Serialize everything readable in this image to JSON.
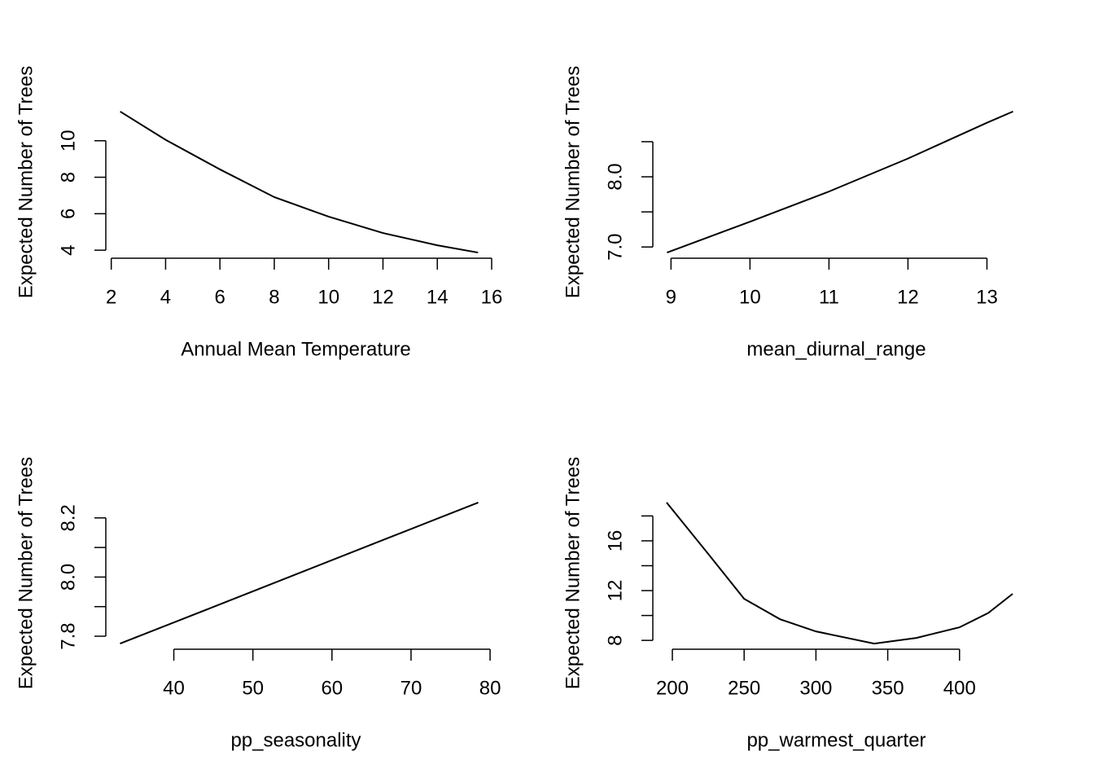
{
  "chart_data": [
    {
      "type": "line",
      "x_label": "Annual Mean Temperature",
      "y_label": "Expected Number of Trees",
      "color": "#000000",
      "x": [
        2.33,
        4,
        6,
        8,
        10,
        12,
        14,
        15.5
      ],
      "values": [
        11.6,
        10.05,
        8.43,
        6.91,
        5.84,
        4.94,
        4.27,
        3.87
      ],
      "xlim": [
        1.8,
        16.03
      ],
      "ylim": [
        3.56,
        11.91
      ],
      "xticks": [
        2,
        4,
        6,
        8,
        10,
        12,
        14,
        16
      ],
      "yticks": [
        4,
        6,
        8,
        10
      ]
    },
    {
      "type": "line",
      "x_label": "mean_diurnal_range",
      "y_label": "Expected Number of Trees",
      "color": "#000000",
      "x": [
        8.95,
        10,
        11,
        12,
        13,
        13.33
      ],
      "values": [
        6.92,
        7.36,
        7.79,
        8.26,
        8.77,
        8.93
      ],
      "xlim": [
        8.77,
        13.5
      ],
      "ylim": [
        6.84,
        9.01
      ],
      "xticks": [
        9,
        10,
        11,
        12,
        13
      ],
      "yticks": [
        {
          "value": 7,
          "label": "7.0"
        },
        {
          "value": 7.5,
          "label": null
        },
        {
          "value": 8,
          "label": "8.0"
        },
        {
          "value": 8.5,
          "label": null
        }
      ]
    },
    {
      "type": "line",
      "x_label": "pp_seasonality",
      "y_label": "Expected Number of Trees",
      "color": "#000000",
      "x": [
        33.2,
        45,
        56,
        67,
        78.5
      ],
      "values": [
        7.775,
        7.899,
        8.015,
        8.131,
        8.252
      ],
      "xlim": [
        31.4,
        80.3
      ],
      "ylim": [
        7.756,
        8.271
      ],
      "xticks": [
        40,
        50,
        60,
        70,
        80
      ],
      "yticks": [
        7.8,
        {
          "value": 7.9,
          "label": null
        },
        {
          "value": 8,
          "label": "8.0"
        },
        {
          "value": 8.1,
          "label": null
        },
        8.2
      ]
    },
    {
      "type": "line",
      "x_label": "pp_warmest_quarter",
      "y_label": "Expected Number of Trees",
      "color": "#000000",
      "x": [
        196,
        225,
        250,
        275,
        300,
        340.6,
        370,
        400,
        420,
        437
      ],
      "values": [
        19.08,
        14.95,
        11.34,
        9.7,
        8.72,
        7.74,
        8.2,
        9.05,
        10.2,
        11.74
      ],
      "xlim": [
        186.4,
        446.6
      ],
      "ylim": [
        7.29,
        19.53
      ],
      "xticks": [
        200,
        250,
        300,
        350,
        400
      ],
      "yticks": [
        8,
        {
          "value": 10,
          "label": null
        },
        12,
        {
          "value": 14,
          "label": null
        },
        16,
        {
          "value": 18,
          "label": null
        }
      ]
    }
  ]
}
